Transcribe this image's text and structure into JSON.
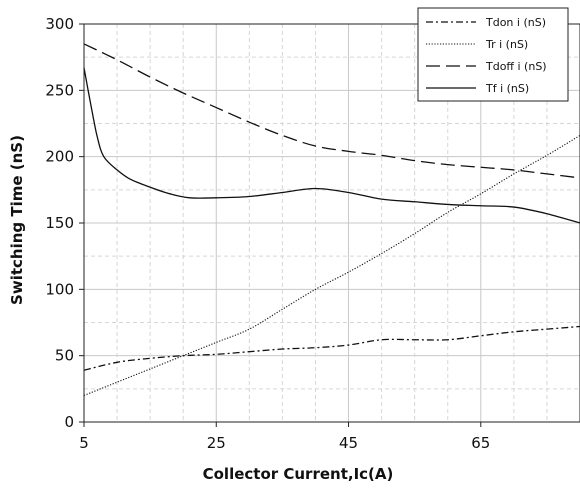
{
  "chart_data": {
    "type": "line",
    "title": "",
    "xlabel": "Collector Current,Ic(A)",
    "ylabel": "Switching Time (nS)",
    "xlim": [
      5,
      80
    ],
    "ylim": [
      0,
      300
    ],
    "x_ticks": [
      5,
      25,
      45,
      65
    ],
    "x_tick_labels": [
      "5",
      "25",
      "45",
      "65"
    ],
    "y_ticks": [
      0,
      50,
      100,
      150,
      200,
      250,
      300
    ],
    "y_tick_labels": [
      "0",
      "50",
      "100",
      "150",
      "200",
      "250",
      "300"
    ],
    "grid": true,
    "legend_position": "top-right",
    "series": [
      {
        "name": "Tdon i (nS)",
        "style": "dash-dot",
        "x": [
          5,
          10,
          15,
          20,
          25,
          30,
          35,
          40,
          45,
          50,
          55,
          60,
          65,
          70,
          75,
          80
        ],
        "y": [
          39,
          45,
          48,
          50,
          51,
          53,
          55,
          56,
          58,
          62,
          62,
          62,
          65,
          68,
          70,
          72
        ]
      },
      {
        "name": "Tr i (nS)",
        "style": "dotted",
        "x": [
          5,
          10,
          15,
          20,
          25,
          30,
          35,
          40,
          45,
          50,
          55,
          60,
          65,
          70,
          75,
          80
        ],
        "y": [
          20,
          30,
          40,
          50,
          60,
          70,
          85,
          100,
          113,
          127,
          142,
          158,
          172,
          187,
          201,
          216
        ]
      },
      {
        "name": "Tdoff i (nS)",
        "style": "long-dash",
        "x": [
          5,
          10,
          15,
          20,
          25,
          30,
          35,
          40,
          45,
          50,
          55,
          60,
          65,
          70,
          75,
          80
        ],
        "y": [
          285,
          273,
          260,
          248,
          237,
          226,
          216,
          208,
          204,
          201,
          197,
          194,
          192,
          190,
          187,
          184
        ]
      },
      {
        "name": "Tf i (nS)",
        "style": "solid",
        "x": [
          5,
          6,
          7,
          8,
          10,
          12,
          15,
          18,
          21,
          25,
          30,
          35,
          40,
          45,
          50,
          55,
          60,
          65,
          70,
          75,
          80
        ],
        "y": [
          267,
          240,
          215,
          200,
          190,
          183,
          177,
          172,
          169,
          169,
          170,
          173,
          176,
          173,
          168,
          166,
          164,
          163,
          162,
          157,
          150
        ]
      }
    ]
  }
}
